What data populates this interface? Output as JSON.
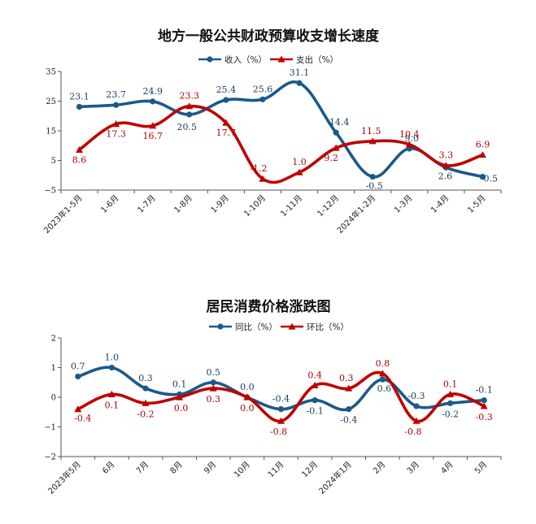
{
  "chart_data": [
    {
      "type": "line",
      "title": "地方一般公共财政预算收支增长速度",
      "categories": [
        "2023年1-5月",
        "1-6月",
        "1-7月",
        "1-8月",
        "1-9月",
        "1-10月",
        "1-11月",
        "1-12月",
        "2024年1-2月",
        "1-3月",
        "1-4月",
        "1-5月"
      ],
      "series": [
        {
          "name": "收入（%）",
          "values": [
            23.1,
            23.7,
            24.9,
            20.5,
            25.4,
            25.6,
            31.1,
            14.4,
            -0.5,
            9.0,
            2.6,
            -0.5
          ],
          "labels": [
            "23.1",
            "23.7",
            "24.9",
            "20.5",
            "25.4",
            "25.6",
            "31.1",
            "14.4",
            "-0.5",
            "9.0",
            "2.6",
            "-0.5"
          ],
          "color": "#1a5a8a",
          "marker": "circle"
        },
        {
          "name": "支出（%）",
          "values": [
            8.6,
            17.3,
            16.7,
            23.3,
            17.7,
            -1.2,
            1.0,
            9.2,
            11.5,
            10.4,
            3.3,
            6.9
          ],
          "labels": [
            "8.6",
            "17.3",
            "16.7",
            "23.3",
            "17.7",
            "-1.2",
            "1.0",
            "9.2",
            "11.5",
            "10.4",
            "3.3",
            "6.9"
          ],
          "color": "#c00000",
          "marker": "triangle"
        }
      ],
      "ylim": [
        -5,
        35
      ],
      "yticks": [
        -5,
        5,
        15,
        25,
        35
      ],
      "ytick_labels": [
        "−5",
        "5",
        "15",
        "25",
        "35"
      ],
      "legend": "top-center",
      "grid": false
    },
    {
      "type": "line",
      "title": "居民消费价格涨跌图",
      "categories": [
        "2023年5月",
        "6月",
        "7月",
        "8月",
        "9月",
        "10月",
        "11月",
        "12月",
        "2024年1月",
        "2月",
        "3月",
        "4月",
        "5月"
      ],
      "series": [
        {
          "name": "同比（%）",
          "values": [
            0.7,
            1.0,
            0.3,
            0.1,
            0.5,
            0.0,
            -0.4,
            -0.1,
            -0.4,
            0.6,
            -0.3,
            -0.2,
            -0.1
          ],
          "labels": [
            "0.7",
            "1.0",
            "0.3",
            "0.1",
            "0.5",
            "0.0",
            "-0.4",
            "-0.1",
            "-0.4",
            "0.6",
            "-0.3",
            "-0.2",
            "-0.1"
          ],
          "color": "#1a5a8a",
          "marker": "circle"
        },
        {
          "name": "环比（%）",
          "values": [
            -0.4,
            0.1,
            -0.2,
            0.0,
            0.3,
            0.0,
            -0.8,
            0.4,
            0.3,
            0.8,
            -0.8,
            0.1,
            -0.3
          ],
          "labels": [
            "-0.4",
            "0.1",
            "-0.2",
            "0.0",
            "0.3",
            "0.0",
            "-0.8",
            "0.4",
            "0.3",
            "0.8",
            "-0.8",
            "0.1",
            "-0.3"
          ],
          "color": "#c00000",
          "marker": "triangle"
        }
      ],
      "ylim": [
        -2,
        2
      ],
      "yticks": [
        -2,
        -1,
        0,
        1,
        2
      ],
      "ytick_labels": [
        "−2",
        "−1",
        "0",
        "1",
        "2"
      ],
      "legend": "top-center",
      "grid": false
    }
  ]
}
